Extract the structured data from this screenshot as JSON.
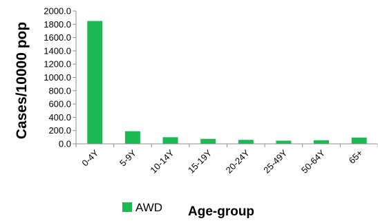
{
  "chart_data": {
    "type": "bar",
    "categories": [
      "0-4Y",
      "5-9Y",
      "10-14Y",
      "15-19Y",
      "20-24Y",
      "25-49Y",
      "50-64Y",
      "65+"
    ],
    "series": [
      {
        "name": "AWD",
        "values": [
          1850,
          190,
          100,
          75,
          60,
          48,
          55,
          95
        ]
      }
    ],
    "ylim": [
      0,
      2000
    ],
    "yticks": [
      "0.0",
      "200.0",
      "400.0",
      "600.0",
      "800.0",
      "1000.0",
      "1200.0",
      "1400.0",
      "1600.0",
      "1800.0",
      "2000.0"
    ],
    "xlabel": "Age-group",
    "ylabel": "Cases/10000 pop",
    "legend": "bottom-left",
    "grid": false,
    "colors": {
      "bar": "#1db954",
      "axis": "#8c8c8c"
    }
  }
}
